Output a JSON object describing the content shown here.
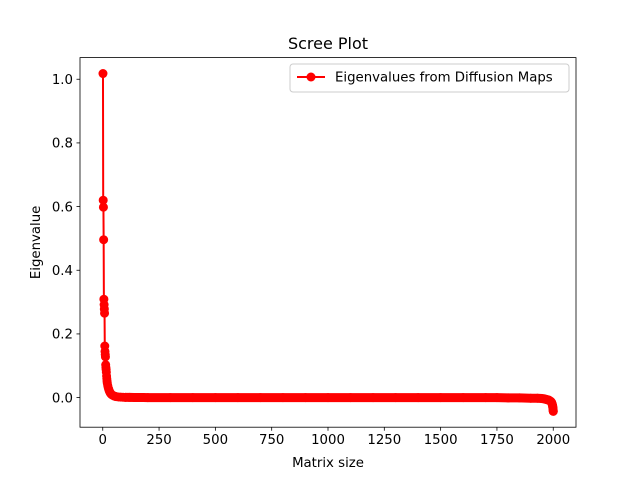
{
  "chart_data": {
    "type": "line",
    "title": "Scree Plot",
    "xlabel": "Matrix size",
    "ylabel": "Eigenvalue",
    "xlim": [
      -101,
      2101
    ],
    "ylim": [
      -0.093,
      1.068
    ],
    "x_ticks": [
      0,
      250,
      500,
      750,
      1000,
      1250,
      1500,
      1750,
      2000
    ],
    "x_tick_labels": [
      "0",
      "250",
      "500",
      "750",
      "1000",
      "1250",
      "1500",
      "1750",
      "2000"
    ],
    "y_ticks": [
      0.0,
      0.2,
      0.4,
      0.6,
      0.8,
      1.0
    ],
    "y_tick_labels": [
      "0.0",
      "0.2",
      "0.4",
      "0.6",
      "0.8",
      "1.0"
    ],
    "grid": false,
    "legend_position": "top-right",
    "series": [
      {
        "name": "Eigenvalues from Diffusion Maps",
        "color": "#ff0000",
        "marker": "circle",
        "x": [
          1,
          2,
          3,
          4,
          5,
          6,
          7,
          8,
          9,
          10,
          11,
          12,
          13,
          14,
          15,
          16,
          17,
          18,
          19,
          20,
          22,
          24,
          26,
          28,
          30,
          33,
          36,
          40,
          45,
          50,
          55,
          60,
          70,
          80,
          90,
          100,
          120,
          140,
          160,
          180,
          200,
          300,
          400,
          500,
          600,
          700,
          800,
          900,
          1000,
          1100,
          1200,
          1300,
          1400,
          1500,
          1600,
          1700,
          1750,
          1800,
          1850,
          1900,
          1930,
          1950,
          1960,
          1970,
          1980,
          1985,
          1990,
          1993,
          1995,
          1997,
          1998,
          1999,
          2000
        ],
        "y": [
          1.018,
          0.62,
          0.598,
          0.496,
          0.309,
          0.292,
          0.278,
          0.265,
          0.162,
          0.145,
          0.135,
          0.128,
          0.103,
          0.095,
          0.088,
          0.08,
          0.068,
          0.06,
          0.052,
          0.046,
          0.038,
          0.032,
          0.027,
          0.023,
          0.019,
          0.015,
          0.012,
          0.009,
          0.007,
          0.005,
          0.004,
          0.003,
          0.002,
          0.0015,
          0.001,
          0.0008,
          0.0005,
          0.0003,
          0.0002,
          0.0001,
          0.0,
          0.0,
          0.0,
          0.0,
          0.0,
          0.0,
          0.0,
          0.0,
          0.0,
          0.0,
          0.0,
          0.0,
          0.0,
          0.0,
          0.0,
          0.0,
          0.0,
          -0.001,
          -0.001,
          -0.002,
          -0.002,
          -0.003,
          -0.004,
          -0.006,
          -0.008,
          -0.01,
          -0.013,
          -0.016,
          -0.02,
          -0.025,
          -0.03,
          -0.036,
          -0.043
        ]
      }
    ]
  }
}
